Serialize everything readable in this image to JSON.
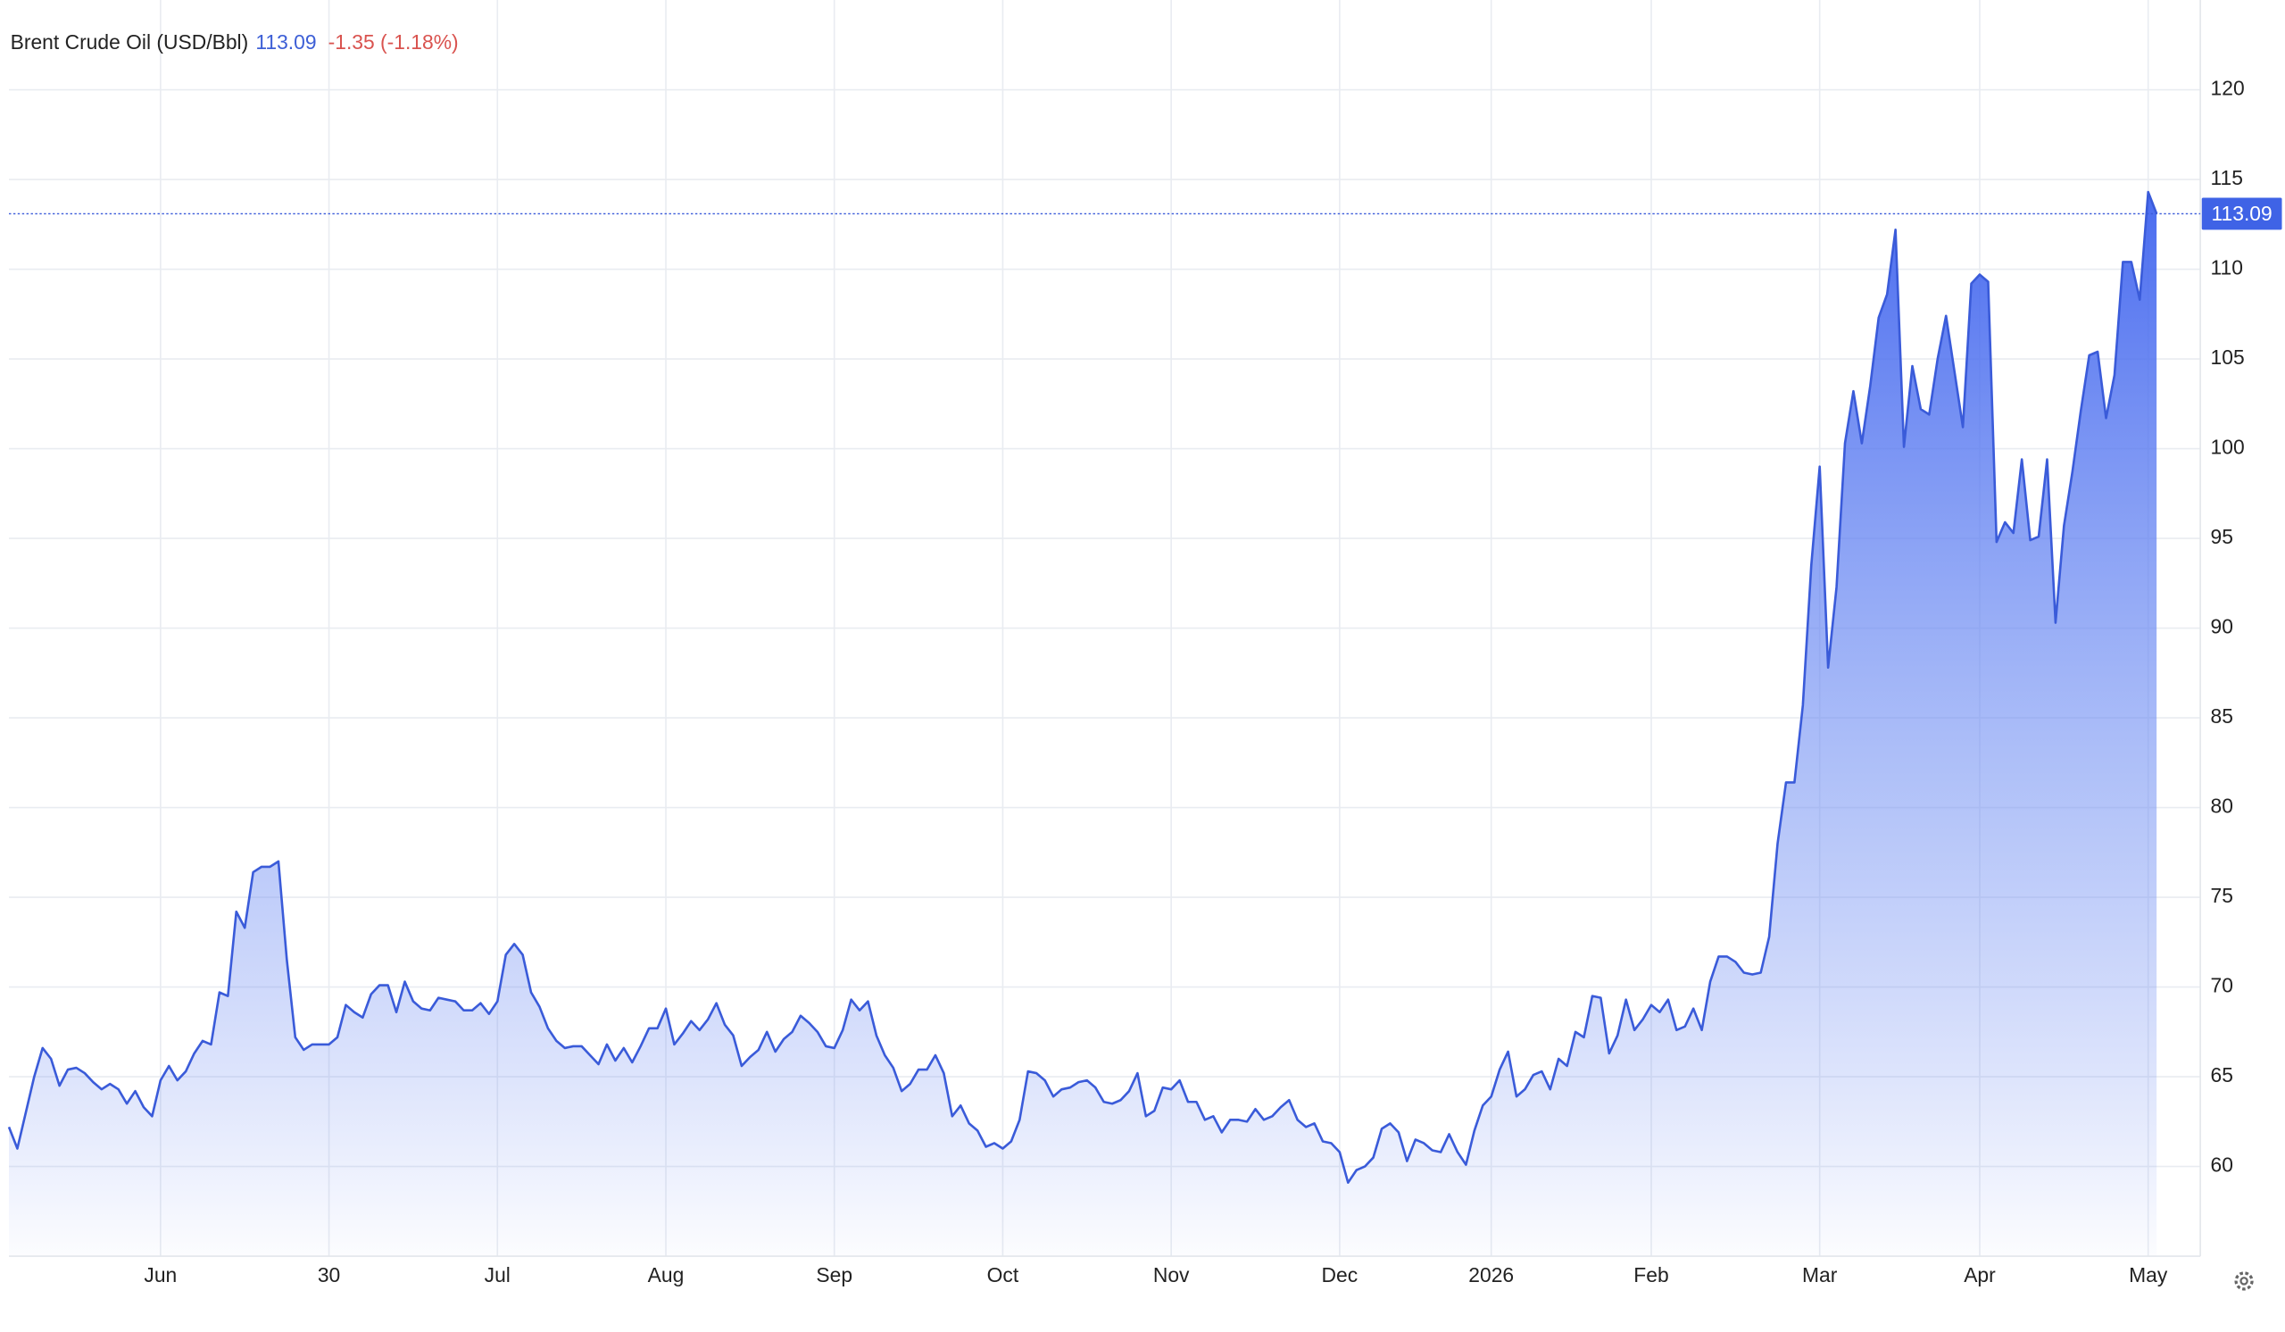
{
  "chart_data": {
    "type": "area",
    "title": "Brent Crude Oil (USD/Bbl)",
    "price": 113.09,
    "change": "-1.35 (-1.18%)",
    "ylim": [
      55,
      125
    ],
    "yticks": [
      60,
      65,
      70,
      75,
      80,
      85,
      90,
      95,
      100,
      105,
      110,
      115,
      120
    ],
    "grid": true,
    "categories": [
      null,
      null,
      null,
      null,
      null,
      null,
      null,
      null,
      null,
      null,
      null,
      null,
      null,
      null,
      null,
      null,
      null,
      null,
      "Jun",
      null,
      null,
      null,
      null,
      null,
      null,
      null,
      null,
      null,
      null,
      null,
      null,
      null,
      null,
      null,
      null,
      null,
      null,
      null,
      "30",
      null,
      null,
      null,
      null,
      null,
      null,
      null,
      null,
      null,
      null,
      null,
      null,
      null,
      null,
      null,
      null,
      null,
      null,
      null,
      "Jul",
      null,
      null,
      null,
      null,
      null,
      null,
      null,
      null,
      null,
      null,
      null,
      null,
      null,
      null,
      null,
      null,
      null,
      null,
      null,
      "Aug",
      null,
      null,
      null,
      null,
      null,
      null,
      null,
      null,
      null,
      null,
      null,
      null,
      null,
      null,
      null,
      null,
      null,
      null,
      null,
      "Sep",
      null,
      null,
      null,
      null,
      null,
      null,
      null,
      null,
      null,
      null,
      null,
      null,
      null,
      null,
      null,
      null,
      null,
      null,
      null,
      "Oct",
      null,
      null,
      null,
      null,
      null,
      null,
      null,
      null,
      null,
      null,
      null,
      null,
      null,
      null,
      null,
      null,
      null,
      null,
      null,
      "Nov",
      null,
      null,
      null,
      null,
      null,
      null,
      null,
      null,
      null,
      null,
      null,
      null,
      null,
      null,
      null,
      null,
      null,
      null,
      null,
      "Dec",
      null,
      null,
      null,
      null,
      null,
      null,
      null,
      null,
      null,
      null,
      null,
      null,
      null,
      null,
      null,
      null,
      null,
      "2026",
      null,
      null,
      null,
      null,
      null,
      null,
      null,
      null,
      null,
      null,
      null,
      null,
      null,
      null,
      null,
      null,
      null,
      null,
      "Feb",
      null,
      null,
      null,
      null,
      null,
      null,
      null,
      null,
      null,
      null,
      null,
      null,
      null,
      null,
      null,
      null,
      null,
      null,
      null,
      "Mar",
      null,
      null,
      null,
      null,
      null,
      null,
      null,
      null,
      null,
      null,
      null,
      null,
      null,
      null,
      null,
      null,
      null,
      null,
      "Apr",
      null,
      null,
      null,
      null,
      null,
      null,
      null,
      null,
      null,
      null,
      null,
      null,
      null,
      null,
      null,
      null,
      null,
      null,
      null,
      "May",
      null
    ],
    "series": [
      {
        "name": "Brent Crude Oil",
        "color": "#3a5bd9",
        "values": [
          62.2,
          61,
          63,
          65,
          66.6,
          66,
          64.5,
          65.4,
          65.5,
          65.2,
          64.7,
          64.3,
          64.6,
          64.3,
          63.5,
          64.2,
          63.3,
          62.8,
          64.8,
          65.6,
          64.8,
          65.3,
          66.3,
          67,
          66.8,
          69.7,
          69.5,
          74.2,
          73.3,
          76.4,
          76.7,
          76.7,
          77,
          71.5,
          67.2,
          66.5,
          66.8,
          66.8,
          66.8,
          67.2,
          69,
          68.6,
          68.3,
          69.6,
          70.1,
          70.1,
          68.6,
          70.3,
          69.2,
          68.8,
          68.7,
          69.4,
          69.3,
          69.2,
          68.7,
          68.7,
          69.1,
          68.5,
          69.2,
          71.8,
          72.4,
          71.8,
          69.7,
          68.9,
          67.7,
          67,
          66.6,
          66.7,
          66.7,
          66.2,
          65.7,
          66.8,
          65.9,
          66.6,
          65.8,
          66.7,
          67.7,
          67.7,
          68.8,
          66.8,
          67.4,
          68.1,
          67.6,
          68.2,
          69.1,
          67.9,
          67.3,
          65.6,
          66.1,
          66.5,
          67.5,
          66.4,
          67.1,
          67.5,
          68.4,
          68,
          67.5,
          66.7,
          66.6,
          67.6,
          69.3,
          68.7,
          69.2,
          67.3,
          66.2,
          65.5,
          64.2,
          64.6,
          65.4,
          65.4,
          66.2,
          65.2,
          62.8,
          63.4,
          62.4,
          62,
          61.1,
          61.3,
          61,
          61.4,
          62.6,
          65.3,
          65.2,
          64.8,
          63.9,
          64.3,
          64.4,
          64.7,
          64.8,
          64.4,
          63.6,
          63.5,
          63.7,
          64.2,
          65.2,
          62.8,
          63.1,
          64.4,
          64.3,
          64.8,
          63.6,
          63.6,
          62.6,
          62.8,
          61.9,
          62.6,
          62.6,
          62.5,
          63.2,
          62.6,
          62.8,
          63.3,
          63.7,
          62.6,
          62.2,
          62.4,
          61.4,
          61.3,
          60.8,
          59.1,
          59.8,
          60,
          60.5,
          62.1,
          62.4,
          61.9,
          60.3,
          61.5,
          61.3,
          60.9,
          60.8,
          61.8,
          60.8,
          60.1,
          62,
          63.4,
          63.9,
          65.4,
          66.4,
          63.9,
          64.3,
          65.1,
          65.3,
          64.3,
          66,
          65.6,
          67.5,
          67.2,
          69.5,
          69.4,
          66.3,
          67.3,
          69.3,
          67.6,
          68.2,
          69,
          68.6,
          69.3,
          67.6,
          67.8,
          68.8,
          67.6,
          70.3,
          71.7,
          71.7,
          71.4,
          70.8,
          70.7,
          70.8,
          72.8,
          78,
          81.4,
          81.4,
          85.7,
          93.5,
          99,
          87.8,
          92.3,
          100.3,
          103.2,
          100.3,
          103.5,
          107.3,
          108.6,
          112.2,
          100.1,
          104.6,
          102.2,
          101.9,
          105,
          107.4,
          104.3,
          101.2,
          109.2,
          109.7,
          109.3,
          94.8,
          95.9,
          95.3,
          99.4,
          94.9,
          95.1,
          99.4,
          90.3,
          95.7,
          98.7,
          102.1,
          105.2,
          105.4,
          101.7,
          104.1,
          110.4,
          110.4,
          108.3,
          114.3,
          113.09
        ]
      }
    ]
  }
}
